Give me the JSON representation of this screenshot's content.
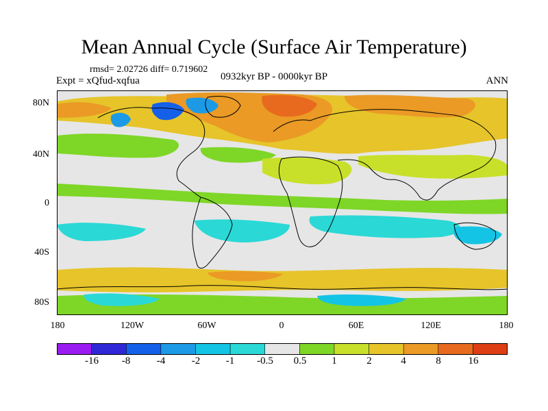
{
  "title": "Mean Annual Cycle (Surface Air Temperature)",
  "stats_line": "rmsd= 2.02726 diff= 0.719602",
  "experiment_label": "Expt = xQfud-xqfua",
  "period_label": "0932kyr BP - 0000kyr BP",
  "season_label": "ANN",
  "map": {
    "projection": "cylindrical equidistant",
    "lat_ticks": [
      {
        "label": "80N",
        "value": 80
      },
      {
        "label": "40N",
        "value": 40
      },
      {
        "label": "0",
        "value": 0
      },
      {
        "label": "40S",
        "value": -40
      },
      {
        "label": "80S",
        "value": -80
      }
    ],
    "lon_ticks": [
      {
        "label": "180",
        "value": -180
      },
      {
        "label": "120W",
        "value": -120
      },
      {
        "label": "60W",
        "value": -60
      },
      {
        "label": "0",
        "value": 0
      },
      {
        "label": "60E",
        "value": 60
      },
      {
        "label": "120E",
        "value": 120
      },
      {
        "label": "180",
        "value": 180
      }
    ],
    "lat_range": [
      -90,
      90
    ],
    "lon_range": [
      -180,
      180
    ]
  },
  "colorbar": {
    "boundaries": [
      "-16",
      "-8",
      "-4",
      "-2",
      "-1",
      "-0.5",
      "0.5",
      "1",
      "2",
      "4",
      "8",
      "16"
    ],
    "colors": [
      "#9a1cf0",
      "#3028d6",
      "#1560e8",
      "#1c9ae6",
      "#14c4e4",
      "#2ad8d6",
      "#e6e6e6",
      "#7ed627",
      "#c8e02a",
      "#e6c42a",
      "#ea9a25",
      "#e86a1e",
      "#dd3e14"
    ]
  },
  "colors": {
    "background": "#e6e6e6",
    "neg_small": "#2ad8d6",
    "neg_mid": "#14c4e4",
    "neg_large": "#1c9ae6",
    "neg_xlarge": "#1560e8",
    "pos_small": "#7ed627",
    "pos_mid": "#c8e02a",
    "pos_large": "#e6c42a",
    "pos_xlarge": "#ea9a25",
    "pos_huge": "#e86a1e",
    "coastline": "#000000"
  }
}
